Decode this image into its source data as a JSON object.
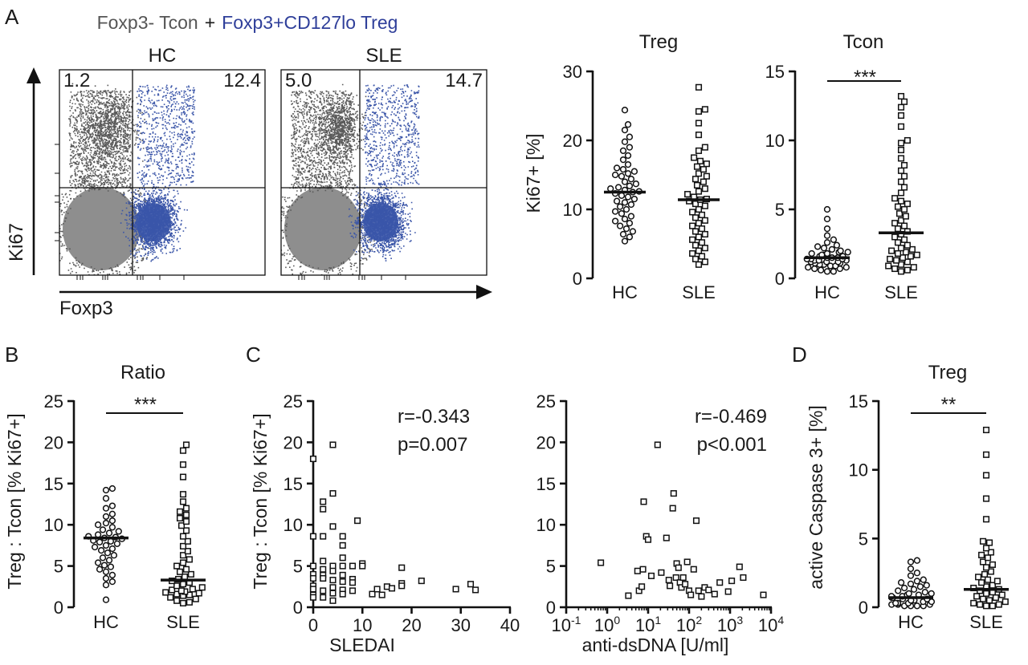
{
  "panel_labels": {
    "a": "A",
    "b": "B",
    "c": "C",
    "d": "D"
  },
  "panel_a": {
    "legend_prefix": "Foxp3- Tcon",
    "legend_plus": "+",
    "legend_treg": "Foxp3+CD127lo Treg",
    "colors": {
      "tcon": "#5a5a5a",
      "treg": "#3a55a8"
    },
    "facs": [
      {
        "title": "HC",
        "q_upper_left": "1.2",
        "q_upper_right": "12.4"
      },
      {
        "title": "SLE",
        "q_upper_left": "5.0",
        "q_upper_right": "14.7"
      }
    ],
    "x_axis_label": "Foxp3",
    "y_axis_label": "Ki67"
  },
  "chart_data": [
    {
      "id": "ki67-treg",
      "type": "scatter",
      "title": "Treg",
      "ylabel": "Ki67+ [%]",
      "categories": [
        "HC",
        "SLE"
      ],
      "ylim": [
        0,
        30
      ],
      "yticks": [
        "0",
        "10",
        "20",
        "30"
      ],
      "median": [
        12.5,
        11.4
      ],
      "series": [
        {
          "values": [
            24.4,
            22.3,
            21.5,
            20.5,
            19.8,
            19.0,
            18.5,
            17.8,
            17.2,
            16.5,
            16.0,
            15.8,
            15.5,
            15.2,
            15.0,
            14.8,
            14.4,
            14.0,
            13.7,
            13.4,
            13.2,
            13.0,
            12.8,
            12.6,
            12.5,
            12.3,
            12.0,
            11.8,
            11.5,
            11.2,
            11.0,
            10.7,
            10.4,
            10.0,
            9.7,
            9.4,
            9.0,
            8.6,
            8.3,
            8.0,
            7.6,
            7.2,
            6.8,
            6.4,
            6.0,
            5.4
          ]
        },
        {
          "values": [
            27.7,
            24.5,
            24.2,
            22.5,
            20.8,
            19.0,
            18.5,
            17.5,
            17.0,
            16.6,
            16.2,
            15.8,
            15.2,
            14.8,
            14.4,
            14.0,
            13.5,
            13.0,
            12.6,
            12.2,
            11.8,
            11.5,
            11.4,
            11.2,
            10.8,
            10.5,
            10.0,
            9.6,
            9.2,
            8.8,
            8.4,
            8.0,
            7.6,
            7.2,
            6.8,
            6.4,
            6.0,
            5.6,
            5.2,
            4.8,
            4.4,
            4.0,
            3.6,
            3.2,
            2.8,
            2.4,
            2.0
          ]
        }
      ],
      "significance": ""
    },
    {
      "id": "ki67-tcon",
      "type": "scatter",
      "title": "Tcon",
      "ylabel": "",
      "categories": [
        "HC",
        "SLE"
      ],
      "ylim": [
        0,
        15
      ],
      "yticks": [
        "0",
        "5",
        "10",
        "15"
      ],
      "median": [
        1.5,
        3.3
      ],
      "series": [
        {
          "values": [
            5.0,
            4.3,
            3.6,
            3.1,
            2.8,
            2.6,
            2.4,
            2.3,
            2.2,
            2.1,
            2.0,
            1.9,
            1.9,
            1.8,
            1.8,
            1.7,
            1.7,
            1.6,
            1.6,
            1.5,
            1.5,
            1.5,
            1.4,
            1.4,
            1.4,
            1.3,
            1.3,
            1.3,
            1.2,
            1.2,
            1.2,
            1.1,
            1.1,
            1.0,
            1.0,
            0.9,
            0.9,
            0.8,
            0.8,
            0.7,
            0.7,
            0.6,
            0.5,
            0.5
          ]
        },
        {
          "values": [
            13.2,
            12.8,
            12.4,
            11.8,
            11.0,
            10.0,
            9.8,
            9.3,
            8.7,
            8.2,
            7.8,
            7.4,
            7.0,
            6.6,
            6.2,
            5.8,
            5.6,
            5.4,
            5.2,
            5.0,
            4.7,
            4.5,
            4.2,
            4.0,
            3.8,
            3.6,
            3.4,
            3.2,
            3.0,
            2.8,
            2.6,
            2.4,
            2.2,
            2.1,
            2.0,
            1.9,
            1.8,
            1.7,
            1.6,
            1.5,
            1.4,
            1.3,
            1.2,
            1.0,
            0.9,
            0.8,
            0.7,
            0.6,
            0.5
          ]
        }
      ],
      "significance": "***"
    },
    {
      "id": "ratio",
      "type": "scatter",
      "title": "Ratio",
      "ylabel": "Treg : Tcon [% Ki67+]",
      "categories": [
        "HC",
        "SLE"
      ],
      "ylim": [
        0,
        25
      ],
      "yticks": [
        "0",
        "5",
        "10",
        "15",
        "20",
        "25"
      ],
      "median": [
        8.4,
        3.3
      ],
      "series": [
        {
          "values": [
            14.4,
            14.2,
            13.2,
            12.3,
            12.0,
            11.3,
            11.0,
            10.5,
            10.2,
            10.0,
            9.7,
            9.4,
            9.2,
            9.0,
            8.8,
            8.6,
            8.5,
            8.4,
            8.3,
            8.1,
            8.0,
            7.9,
            7.7,
            7.5,
            7.3,
            7.1,
            6.9,
            6.6,
            6.3,
            6.0,
            5.7,
            5.4,
            5.1,
            4.9,
            4.6,
            4.3,
            3.9,
            3.5,
            3.1,
            2.7,
            0.9
          ]
        },
        {
          "values": [
            19.7,
            19.0,
            17.3,
            15.8,
            13.7,
            12.8,
            12.0,
            11.6,
            11.2,
            10.8,
            10.4,
            9.9,
            9.3,
            8.6,
            8.0,
            7.4,
            6.8,
            6.3,
            5.8,
            5.4,
            5.0,
            4.6,
            4.3,
            4.0,
            3.7,
            3.4,
            3.2,
            3.0,
            2.8,
            2.6,
            2.4,
            2.2,
            2.1,
            2.0,
            1.9,
            1.8,
            1.7,
            1.6,
            1.5,
            1.4,
            1.2,
            1.0,
            0.8,
            0.6,
            0.5
          ]
        }
      ],
      "significance": "***"
    },
    {
      "id": "sledai",
      "type": "scatter",
      "ylabel": "Treg : Tcon [% Ki67+]",
      "xlabel": "SLEDAI",
      "xlim": [
        0,
        40
      ],
      "ylim": [
        0,
        25
      ],
      "xticks": [
        "0",
        "10",
        "20",
        "30",
        "40"
      ],
      "yticks": [
        "0",
        "5",
        "10",
        "15",
        "20",
        "25"
      ],
      "stats": [
        "r=-0.343",
        "p=0.007"
      ],
      "points": [
        [
          0,
          18.0
        ],
        [
          0,
          8.6
        ],
        [
          0,
          5.0
        ],
        [
          0,
          4.0
        ],
        [
          0,
          3.5
        ],
        [
          0,
          2.6
        ],
        [
          0,
          2.2
        ],
        [
          0,
          1.5
        ],
        [
          0,
          1.2
        ],
        [
          2,
          12.8
        ],
        [
          2,
          11.9
        ],
        [
          2,
          8.6
        ],
        [
          2,
          5.6
        ],
        [
          2,
          4.6
        ],
        [
          2,
          3.9
        ],
        [
          2,
          3.5
        ],
        [
          2,
          2.0
        ],
        [
          2,
          1.2
        ],
        [
          4,
          19.7
        ],
        [
          4,
          13.8
        ],
        [
          4,
          9.8
        ],
        [
          4,
          5.0
        ],
        [
          4,
          4.4
        ],
        [
          4,
          3.3
        ],
        [
          4,
          2.4
        ],
        [
          4,
          1.7
        ],
        [
          4,
          0.8
        ],
        [
          6,
          8.6
        ],
        [
          6,
          7.5
        ],
        [
          6,
          6.0
        ],
        [
          6,
          5.0
        ],
        [
          6,
          3.9
        ],
        [
          6,
          3.1
        ],
        [
          6,
          2.1
        ],
        [
          6,
          1.6
        ],
        [
          8,
          5.0
        ],
        [
          8,
          3.4
        ],
        [
          8,
          3.0
        ],
        [
          8,
          2.0
        ],
        [
          9,
          10.5
        ],
        [
          10,
          5.3
        ],
        [
          10,
          5.0
        ],
        [
          12,
          1.6
        ],
        [
          13,
          2.2
        ],
        [
          14,
          1.5
        ],
        [
          15,
          2.5
        ],
        [
          16,
          2.3
        ],
        [
          18,
          4.8
        ],
        [
          18,
          2.9
        ],
        [
          18,
          2.6
        ],
        [
          22,
          3.2
        ],
        [
          29,
          2.2
        ],
        [
          32,
          2.8
        ],
        [
          33,
          2.1
        ]
      ]
    },
    {
      "id": "anti-dsdna",
      "type": "scatter",
      "xlabel": "anti-dsDNA [U/ml]",
      "xscale": "log",
      "xlim": [
        0.1,
        10000
      ],
      "ylim": [
        0,
        25
      ],
      "xtick_values": [
        0.1,
        1,
        10,
        100,
        1000,
        10000
      ],
      "xticks": [
        {
          "base": "10",
          "exp": "-1"
        },
        {
          "base": "10",
          "exp": "0"
        },
        {
          "base": "10",
          "exp": "1"
        },
        {
          "base": "10",
          "exp": "2"
        },
        {
          "base": "10",
          "exp": "3"
        },
        {
          "base": "10",
          "exp": "4"
        }
      ],
      "yticks": [
        "0",
        "5",
        "10",
        "15",
        "20",
        "25"
      ],
      "stats": [
        "r=-0.469",
        "p<0.001"
      ],
      "points": [
        [
          0.7,
          5.4
        ],
        [
          3.3,
          1.4
        ],
        [
          5.5,
          4.4
        ],
        [
          6,
          2.0
        ],
        [
          7,
          2.5
        ],
        [
          7.5,
          4.6
        ],
        [
          7.8,
          12.8
        ],
        [
          9,
          8.6
        ],
        [
          10,
          8.2
        ],
        [
          12,
          3.8
        ],
        [
          17,
          19.7
        ],
        [
          21,
          4.2
        ],
        [
          28,
          8.4
        ],
        [
          32,
          3.3
        ],
        [
          34,
          2.6
        ],
        [
          40,
          12.0
        ],
        [
          42,
          13.8
        ],
        [
          48,
          3.6
        ],
        [
          50,
          5.3
        ],
        [
          55,
          4.8
        ],
        [
          60,
          3.0
        ],
        [
          65,
          2.4
        ],
        [
          72,
          3.6
        ],
        [
          80,
          2.8
        ],
        [
          90,
          5.5
        ],
        [
          100,
          2.0
        ],
        [
          110,
          1.5
        ],
        [
          130,
          4.6
        ],
        [
          150,
          10.5
        ],
        [
          170,
          2.0
        ],
        [
          200,
          1.3
        ],
        [
          240,
          2.4
        ],
        [
          300,
          2.1
        ],
        [
          420,
          1.6
        ],
        [
          560,
          3.0
        ],
        [
          900,
          1.9
        ],
        [
          1100,
          3.2
        ],
        [
          1700,
          4.9
        ],
        [
          2100,
          3.6
        ],
        [
          6500,
          1.5
        ]
      ]
    },
    {
      "id": "caspase",
      "type": "scatter",
      "title": "Treg",
      "ylabel": "active Caspase 3+ [%]",
      "categories": [
        "HC",
        "SLE"
      ],
      "ylim": [
        0,
        15
      ],
      "yticks": [
        "0",
        "5",
        "10",
        "15"
      ],
      "median": [
        0.7,
        1.3
      ],
      "series": [
        {
          "values": [
            3.4,
            3.3,
            2.8,
            2.5,
            2.3,
            2.0,
            1.9,
            1.8,
            1.7,
            1.6,
            1.5,
            1.4,
            1.3,
            1.2,
            1.1,
            1.0,
            1.0,
            0.9,
            0.9,
            0.8,
            0.8,
            0.7,
            0.7,
            0.6,
            0.6,
            0.5,
            0.5,
            0.4,
            0.4,
            0.3,
            0.3,
            0.3,
            0.2,
            0.2,
            0.2,
            0.1,
            0.1,
            0.1,
            0.1
          ]
        },
        {
          "values": [
            12.9,
            11.1,
            9.6,
            7.9,
            6.4,
            4.8,
            4.7,
            4.3,
            4.0,
            3.8,
            3.6,
            3.3,
            3.1,
            2.9,
            2.6,
            2.4,
            2.2,
            2.0,
            1.9,
            1.8,
            1.6,
            1.5,
            1.4,
            1.3,
            1.2,
            1.1,
            1.0,
            0.9,
            0.8,
            0.7,
            0.6,
            0.5,
            0.4,
            0.3,
            0.2,
            0.2,
            0.1,
            0.1
          ]
        }
      ],
      "significance": "**"
    }
  ]
}
